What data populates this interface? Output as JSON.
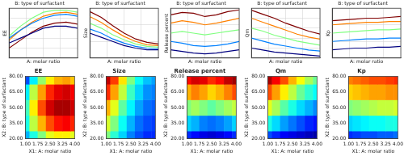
{
  "chart_data": [
    {
      "type": "surface",
      "ylabel": "EE",
      "xlabel": "A: molar ratio",
      "subtitle": "B: type of surfactant",
      "grid": true,
      "tick_labels": false,
      "x": [
        1,
        1.5,
        2,
        2.5,
        3,
        3.5,
        4
      ],
      "y": [
        20,
        35,
        50,
        65,
        80
      ],
      "z": [
        [
          55,
          60,
          65,
          70,
          72,
          72,
          70
        ],
        [
          60,
          68,
          75,
          80,
          83,
          84,
          82
        ],
        [
          62,
          72,
          80,
          86,
          88,
          88,
          86
        ],
        [
          58,
          68,
          76,
          82,
          85,
          86,
          84
        ],
        [
          50,
          58,
          66,
          72,
          75,
          76,
          74
        ]
      ],
      "xlim": [
        1,
        4
      ],
      "xticks": [
        {
          "value": 1,
          "label": "1.00"
        },
        {
          "value": 1.75,
          "label": "1.75"
        },
        {
          "value": 2.5,
          "label": "2.50"
        },
        {
          "value": 3.25,
          "label": "3.25"
        },
        {
          "value": 4,
          "label": "4.00"
        }
      ],
      "zlim": [
        40,
        90
      ],
      "zticks": [
        40,
        50,
        60,
        70,
        80,
        90
      ]
    },
    {
      "type": "surface",
      "ylabel": "Size",
      "xlabel": "A: molar ratio",
      "subtitle": "B: type of surfactant",
      "grid": true,
      "tick_labels": false,
      "x": [
        1,
        1.5,
        2,
        2.5,
        3,
        3.5,
        4
      ],
      "y": [
        20,
        35,
        50,
        65,
        80
      ],
      "z": [
        [
          500,
          450,
          400,
          350,
          320,
          300,
          300
        ],
        [
          550,
          500,
          430,
          380,
          340,
          320,
          310
        ],
        [
          620,
          560,
          480,
          420,
          370,
          340,
          330
        ],
        [
          700,
          630,
          540,
          460,
          400,
          360,
          350
        ],
        [
          760,
          690,
          590,
          500,
          430,
          390,
          370
        ]
      ],
      "xlim": [
        1,
        4
      ],
      "xticks": [
        {
          "value": 1,
          "label": "1.00"
        },
        {
          "value": 1.75,
          "label": "1.75"
        },
        {
          "value": 2.5,
          "label": "2.50"
        },
        {
          "value": 3.25,
          "label": "3.25"
        },
        {
          "value": 4,
          "label": "4.00"
        }
      ],
      "zlim": [
        200,
        800
      ],
      "zticks": [
        200,
        400,
        600,
        800
      ]
    },
    {
      "type": "surface",
      "ylabel": "Release percent",
      "xlabel": "A: molar ratio",
      "subtitle": "B: type of surfactant",
      "grid": true,
      "tick_labels": false,
      "x": [
        1,
        1.5,
        2,
        2.5,
        3,
        3.5,
        4
      ],
      "y": [
        20,
        35,
        50,
        65,
        80
      ],
      "z": [
        [
          40,
          38,
          36,
          35,
          36,
          38,
          40
        ],
        [
          50,
          48,
          45,
          44,
          45,
          47,
          50
        ],
        [
          60,
          62,
          60,
          58,
          60,
          62,
          64
        ],
        [
          72,
          75,
          73,
          70,
          72,
          75,
          78
        ],
        [
          82,
          85,
          84,
          80,
          82,
          86,
          88
        ]
      ],
      "xlim": [
        1,
        4
      ],
      "xticks": [
        {
          "value": 1,
          "label": "1.00"
        },
        {
          "value": 1.75,
          "label": "1.75"
        },
        {
          "value": 2.5,
          "label": "2.50"
        },
        {
          "value": 3.25,
          "label": "3.25"
        },
        {
          "value": 4,
          "label": "4.00"
        }
      ],
      "zlim": [
        30,
        90
      ],
      "zticks": [
        30,
        50,
        70,
        90
      ]
    },
    {
      "type": "surface",
      "ylabel": "Qm",
      "xlabel": "A: molar ratio",
      "subtitle": "B: type of surfactant",
      "grid": true,
      "tick_labels": false,
      "x": [
        1,
        1.5,
        2,
        2.5,
        3,
        3.5,
        4
      ],
      "y": [
        20,
        35,
        50,
        65,
        80
      ],
      "z": [
        [
          20,
          18,
          16,
          15,
          14,
          13,
          12
        ],
        [
          30,
          27,
          24,
          22,
          20,
          18,
          17
        ],
        [
          40,
          37,
          33,
          30,
          27,
          25,
          23
        ],
        [
          50,
          46,
          42,
          38,
          34,
          31,
          29
        ],
        [
          58,
          54,
          50,
          45,
          41,
          37,
          34
        ]
      ],
      "xlim": [
        1,
        4
      ],
      "xticks": [
        {
          "value": 1,
          "label": "1.00"
        },
        {
          "value": 1.75,
          "label": "1.75"
        },
        {
          "value": 2.5,
          "label": "2.50"
        },
        {
          "value": 3.25,
          "label": "3.25"
        },
        {
          "value": 4,
          "label": "4.00"
        }
      ],
      "zlim": [
        10,
        60
      ],
      "zticks": [
        10,
        20,
        30,
        40,
        50,
        60
      ]
    },
    {
      "type": "surface",
      "ylabel": "Kp",
      "xlabel": "A: molar ratio",
      "subtitle": "B: type of surfactant",
      "grid": true,
      "tick_labels": false,
      "x": [
        1,
        1.5,
        2,
        2.5,
        3,
        3.5,
        4
      ],
      "y": [
        20,
        35,
        50,
        65,
        80
      ],
      "z": [
        [
          0.01,
          0.011,
          0.012,
          0.012,
          0.013,
          0.013,
          0.014
        ],
        [
          0.02,
          0.021,
          0.022,
          0.023,
          0.023,
          0.024,
          0.024
        ],
        [
          0.03,
          0.031,
          0.032,
          0.033,
          0.034,
          0.034,
          0.035
        ],
        [
          0.04,
          0.041,
          0.042,
          0.043,
          0.043,
          0.044,
          0.044
        ],
        [
          0.045,
          0.046,
          0.047,
          0.048,
          0.048,
          0.049,
          0.05
        ]
      ],
      "xlim": [
        1,
        4
      ],
      "xticks": [
        {
          "value": 1,
          "label": "1.00"
        },
        {
          "value": 1.75,
          "label": "1.75"
        },
        {
          "value": 2.5,
          "label": "2.50"
        },
        {
          "value": 3.25,
          "label": "3.25"
        },
        {
          "value": 4,
          "label": "4.00"
        }
      ],
      "zlim": [
        0,
        0.06
      ],
      "zticks": [
        0,
        0.02,
        0.04,
        0.06
      ]
    },
    {
      "type": "contour",
      "title": "EE",
      "xlabel": "X1: A: molar ratio",
      "ylabel": "X2: B: type of surfactant",
      "grid": false,
      "x": [
        1,
        1.5,
        2,
        2.5,
        3,
        3.5,
        4
      ],
      "y": [
        20,
        35,
        50,
        65,
        80
      ],
      "z": [
        [
          55,
          60,
          65,
          70,
          72,
          72,
          70
        ],
        [
          60,
          68,
          75,
          80,
          83,
          84,
          82
        ],
        [
          62,
          72,
          80,
          86,
          88,
          88,
          86
        ],
        [
          58,
          68,
          76,
          82,
          85,
          86,
          84
        ],
        [
          50,
          58,
          66,
          72,
          75,
          76,
          74
        ]
      ],
      "zlim": [
        40,
        90
      ],
      "xlim": [
        1,
        4
      ],
      "xticks": [
        {
          "value": 1,
          "label": "1.00"
        },
        {
          "value": 1.75,
          "label": "1.75"
        },
        {
          "value": 2.5,
          "label": "2.50"
        },
        {
          "value": 3.25,
          "label": "3.25"
        },
        {
          "value": 4,
          "label": "4.00"
        }
      ],
      "ylim": [
        20,
        80
      ],
      "yticks": [
        {
          "value": 20,
          "label": "20.00"
        },
        {
          "value": 35,
          "label": "35.00"
        },
        {
          "value": 50,
          "label": "50.00"
        },
        {
          "value": 65,
          "label": "65.00"
        },
        {
          "value": 80,
          "label": "80.00"
        }
      ]
    },
    {
      "type": "contour",
      "title": "Size",
      "xlabel": "X1: A: molar ratio",
      "ylabel": "X2: B: type of surfactant",
      "grid": false,
      "x": [
        1,
        1.5,
        2,
        2.5,
        3,
        3.5,
        4
      ],
      "y": [
        20,
        35,
        50,
        65,
        80
      ],
      "z": [
        [
          500,
          450,
          400,
          350,
          320,
          300,
          300
        ],
        [
          550,
          500,
          430,
          380,
          340,
          320,
          310
        ],
        [
          620,
          560,
          480,
          420,
          370,
          340,
          330
        ],
        [
          700,
          630,
          540,
          460,
          400,
          360,
          350
        ],
        [
          760,
          690,
          590,
          500,
          430,
          390,
          370
        ]
      ],
      "zlim": [
        200,
        800
      ],
      "xlim": [
        1,
        4
      ],
      "xticks": [
        {
          "value": 1,
          "label": "1.00"
        },
        {
          "value": 1.75,
          "label": "1.75"
        },
        {
          "value": 2.5,
          "label": "2.50"
        },
        {
          "value": 3.25,
          "label": "3.25"
        },
        {
          "value": 4,
          "label": "4.00"
        }
      ],
      "ylim": [
        20,
        80
      ],
      "yticks": [
        {
          "value": 20,
          "label": "20.00"
        },
        {
          "value": 35,
          "label": "35.00"
        },
        {
          "value": 50,
          "label": "50.00"
        },
        {
          "value": 65,
          "label": "65.00"
        },
        {
          "value": 80,
          "label": "80.00"
        }
      ]
    },
    {
      "type": "contour",
      "title": "Release percent",
      "xlabel": "X1: A: molar ratio",
      "ylabel": "X2: B: type of surfactant",
      "grid": false,
      "x": [
        1,
        1.5,
        2,
        2.5,
        3,
        3.5,
        4
      ],
      "y": [
        20,
        35,
        50,
        65,
        80
      ],
      "z": [
        [
          40,
          38,
          36,
          35,
          36,
          38,
          40
        ],
        [
          50,
          48,
          45,
          44,
          45,
          47,
          50
        ],
        [
          60,
          62,
          60,
          58,
          60,
          62,
          64
        ],
        [
          72,
          75,
          73,
          70,
          72,
          75,
          78
        ],
        [
          82,
          85,
          84,
          80,
          82,
          86,
          88
        ]
      ],
      "zlim": [
        30,
        90
      ],
      "xlim": [
        1,
        4
      ],
      "xticks": [
        {
          "value": 1,
          "label": "1.00"
        },
        {
          "value": 1.75,
          "label": "1.75"
        },
        {
          "value": 2.5,
          "label": "2.50"
        },
        {
          "value": 3.25,
          "label": "3.25"
        },
        {
          "value": 4,
          "label": "4.00"
        }
      ],
      "ylim": [
        20,
        80
      ],
      "yticks": [
        {
          "value": 20,
          "label": "20.00"
        },
        {
          "value": 35,
          "label": "35.00"
        },
        {
          "value": 50,
          "label": "50.00"
        },
        {
          "value": 65,
          "label": "65.00"
        },
        {
          "value": 80,
          "label": "80.00"
        }
      ]
    },
    {
      "type": "contour",
      "title": "Qm",
      "xlabel": "X1: A: molar ratio",
      "ylabel": "X2: B: type of surfactant",
      "grid": false,
      "x": [
        1,
        1.5,
        2,
        2.5,
        3,
        3.5,
        4
      ],
      "y": [
        20,
        35,
        50,
        65,
        80
      ],
      "z": [
        [
          20,
          18,
          16,
          15,
          14,
          13,
          12
        ],
        [
          30,
          27,
          24,
          22,
          20,
          18,
          17
        ],
        [
          40,
          37,
          33,
          30,
          27,
          25,
          23
        ],
        [
          50,
          46,
          42,
          38,
          34,
          31,
          29
        ],
        [
          58,
          54,
          50,
          45,
          41,
          37,
          34
        ]
      ],
      "zlim": [
        10,
        60
      ],
      "xlim": [
        1,
        4
      ],
      "xticks": [
        {
          "value": 1,
          "label": "1.00"
        },
        {
          "value": 1.75,
          "label": "1.75"
        },
        {
          "value": 2.5,
          "label": "2.50"
        },
        {
          "value": 3.25,
          "label": "3.25"
        },
        {
          "value": 4,
          "label": "4.00"
        }
      ],
      "ylim": [
        20,
        80
      ],
      "yticks": [
        {
          "value": 20,
          "label": "20.00"
        },
        {
          "value": 35,
          "label": "35.00"
        },
        {
          "value": 50,
          "label": "50.00"
        },
        {
          "value": 65,
          "label": "65.00"
        },
        {
          "value": 80,
          "label": "80.00"
        }
      ]
    },
    {
      "type": "contour",
      "title": "Kp",
      "xlabel": "X1: A: molar ratio",
      "ylabel": "X2: B: type of surfactant",
      "grid": false,
      "x": [
        1,
        1.5,
        2,
        2.5,
        3,
        3.5,
        4
      ],
      "y": [
        20,
        35,
        50,
        65,
        80
      ],
      "z": [
        [
          0.01,
          0.011,
          0.012,
          0.012,
          0.013,
          0.013,
          0.014
        ],
        [
          0.02,
          0.021,
          0.022,
          0.023,
          0.023,
          0.024,
          0.024
        ],
        [
          0.03,
          0.031,
          0.032,
          0.033,
          0.034,
          0.034,
          0.035
        ],
        [
          0.04,
          0.041,
          0.042,
          0.043,
          0.043,
          0.044,
          0.044
        ],
        [
          0.045,
          0.046,
          0.047,
          0.048,
          0.048,
          0.049,
          0.05
        ]
      ],
      "zlim": [
        0,
        0.06
      ],
      "xlim": [
        1,
        4
      ],
      "xticks": [
        {
          "value": 1,
          "label": "1.00"
        },
        {
          "value": 1.75,
          "label": "1.75"
        },
        {
          "value": 2.5,
          "label": "2.50"
        },
        {
          "value": 3.25,
          "label": "3.25"
        },
        {
          "value": 4,
          "label": "4.00"
        }
      ],
      "ylim": [
        20,
        80
      ],
      "yticks": [
        {
          "value": 20,
          "label": "20.00"
        },
        {
          "value": 35,
          "label": "35.00"
        },
        {
          "value": 50,
          "label": "50.00"
        },
        {
          "value": 65,
          "label": "65.00"
        },
        {
          "value": 80,
          "label": "80.00"
        }
      ]
    }
  ]
}
